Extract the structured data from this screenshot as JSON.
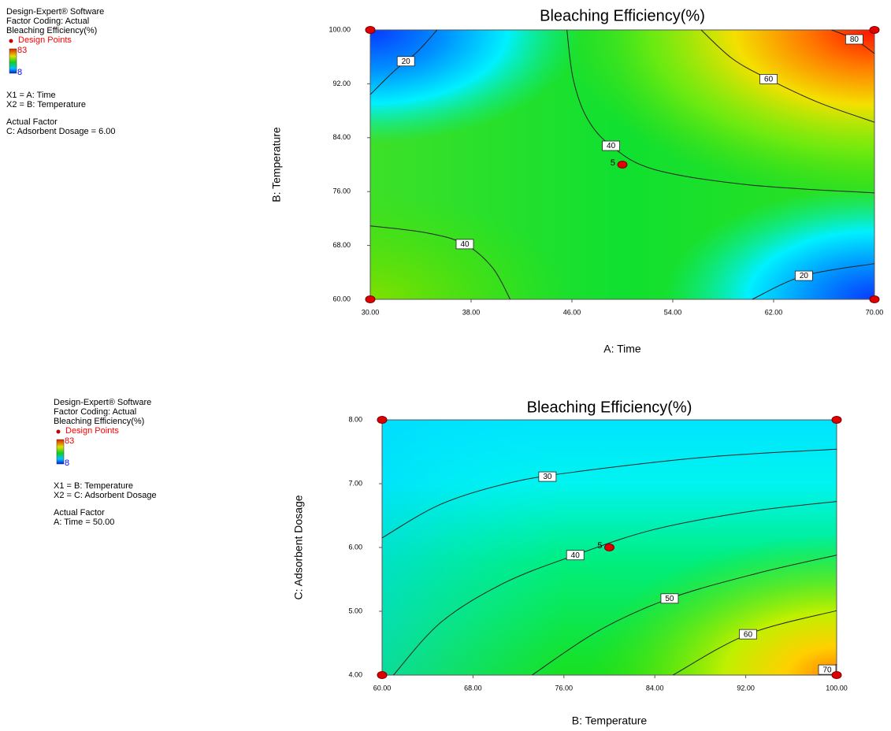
{
  "chart_data": [
    {
      "type": "contour",
      "title": "Bleaching Efficiency(%)",
      "x_label": "A: Time",
      "y_label": "B: Temperature",
      "xlim": [
        30,
        70
      ],
      "ylim": [
        60,
        100
      ],
      "xticks": [
        {
          "value": 30,
          "label": "30.00"
        },
        {
          "value": 38,
          "label": "38.00"
        },
        {
          "value": 46,
          "label": "46.00"
        },
        {
          "value": 54,
          "label": "54.00"
        },
        {
          "value": 62,
          "label": "62.00"
        },
        {
          "value": 70,
          "label": "70.00"
        }
      ],
      "yticks": [
        {
          "value": 60,
          "label": "60.00"
        },
        {
          "value": 68,
          "label": "68.00"
        },
        {
          "value": 76,
          "label": "76.00"
        },
        {
          "value": 84,
          "label": "84.00"
        },
        {
          "value": 92,
          "label": "92.00"
        },
        {
          "value": 100,
          "label": "100.00"
        }
      ],
      "sidebar": {
        "software": "Design-Expert® Software",
        "coding": "Factor Coding: Actual",
        "response": "Bleaching Efficiency(%)",
        "points_legend": "Design Points",
        "colorbar": {
          "max": 83,
          "min": 8
        },
        "x1": "X1 = A: Time",
        "x2": "X2 = B: Temperature",
        "factor_heading": "Actual Factor",
        "factor": "C: Adsorbent Dosage = 6.00"
      },
      "contours": [
        {
          "level": 20,
          "x": [
            30,
            31.9,
            33.75,
            35.3
          ],
          "y": [
            90.4,
            93.9,
            96.8,
            100
          ]
        },
        {
          "level": 80,
          "x": [
            66.6,
            68.4,
            70
          ],
          "y": [
            100,
            98.6,
            96.5
          ]
        },
        {
          "level": 60,
          "x": [
            56.25,
            58.75,
            61.6,
            65.6,
            70
          ],
          "y": [
            100,
            95.7,
            92.7,
            89.2,
            86.3
          ]
        },
        {
          "level": 40,
          "x": [
            45.6,
            46.1,
            47.2,
            49.1,
            52.5,
            60,
            70
          ],
          "y": [
            100,
            92.7,
            86.9,
            82.8,
            79.3,
            77,
            75.8
          ]
        },
        {
          "level": 40,
          "x": [
            30,
            34.4,
            37.5,
            39.7,
            41.1
          ],
          "y": [
            70.9,
            69.9,
            68.2,
            64.7,
            60
          ]
        },
        {
          "level": 20,
          "x": [
            60.3,
            64.4,
            70
          ],
          "y": [
            60,
            63.5,
            65.3
          ]
        }
      ],
      "design_points": [
        {
          "x": 30,
          "y": 60
        },
        {
          "x": 30,
          "y": 100
        },
        {
          "x": 70,
          "y": 60
        },
        {
          "x": 70,
          "y": 100
        },
        {
          "x": 50,
          "y": 80,
          "replicates": 5
        }
      ]
    },
    {
      "type": "contour",
      "title": "Bleaching Efficiency(%)",
      "x_label": "B: Temperature",
      "y_label": "C: Adsorbent Dosage",
      "xlim": [
        60,
        100
      ],
      "ylim": [
        4,
        8
      ],
      "xticks": [
        {
          "value": 60,
          "label": "60.00"
        },
        {
          "value": 68,
          "label": "68.00"
        },
        {
          "value": 76,
          "label": "76.00"
        },
        {
          "value": 84,
          "label": "84.00"
        },
        {
          "value": 92,
          "label": "92.00"
        },
        {
          "value": 100,
          "label": "100.00"
        }
      ],
      "yticks": [
        {
          "value": 4,
          "label": "4.00"
        },
        {
          "value": 5,
          "label": "5.00"
        },
        {
          "value": 6,
          "label": "6.00"
        },
        {
          "value": 7,
          "label": "7.00"
        },
        {
          "value": 8,
          "label": "8.00"
        }
      ],
      "sidebar": {
        "software": "Design-Expert® Software",
        "coding": "Factor Coding: Actual",
        "response": "Bleaching Efficiency(%)",
        "points_legend": "Design Points",
        "colorbar": {
          "max": 83,
          "min": 8
        },
        "x1": "X1 = B: Temperature",
        "x2": "X2 = C: Adsorbent Dosage",
        "factor_heading": "Actual Factor",
        "factor": "A: Time = 50.00"
      },
      "contours": [
        {
          "level": 30,
          "x": [
            60,
            65.2,
            71.4,
            77.7,
            88.8,
            100
          ],
          "y": [
            6.15,
            6.68,
            7.02,
            7.2,
            7.42,
            7.54
          ]
        },
        {
          "level": 40,
          "x": [
            61,
            65.2,
            70.7,
            77,
            83.9,
            92.2,
            100
          ],
          "y": [
            4,
            4.83,
            5.44,
            5.88,
            6.28,
            6.56,
            6.72
          ]
        },
        {
          "level": 50,
          "x": [
            73.2,
            79.1,
            85.3,
            92.9,
            100
          ],
          "y": [
            4,
            4.7,
            5.2,
            5.59,
            5.88
          ]
        },
        {
          "level": 60,
          "x": [
            85.6,
            92.2,
            100
          ],
          "y": [
            4,
            4.64,
            5.01
          ]
        },
        {
          "level": 70,
          "x": [
            98.5,
            100
          ],
          "y": [
            4,
            4.17
          ]
        }
      ],
      "design_points": [
        {
          "x": 60,
          "y": 4
        },
        {
          "x": 60,
          "y": 8
        },
        {
          "x": 100,
          "y": 4
        },
        {
          "x": 100,
          "y": 8
        },
        {
          "x": 80,
          "y": 6,
          "replicates": 5
        }
      ]
    }
  ]
}
